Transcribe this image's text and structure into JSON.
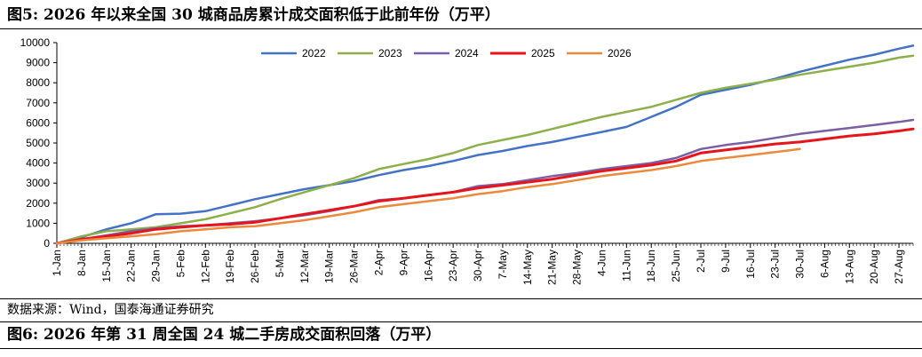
{
  "figure5_title": "图5:  2026 年以来全国 30 城商品房累计成交面积低于此前年份（万平）",
  "source_text": "数据来源：Wind，国泰海通证券研究",
  "figure6_title": "图6:  2026 年第 31 周全国 24 城二手房成交面积回落（万平）",
  "chart_data": {
    "type": "line",
    "title": "",
    "xlabel": "",
    "ylabel": "",
    "ylim": [
      0,
      10000
    ],
    "yticks": [
      0,
      1000,
      2000,
      3000,
      4000,
      5000,
      6000,
      7000,
      8000,
      9000,
      10000
    ],
    "x_range_day": [
      1,
      243
    ],
    "x_ticks": [
      {
        "day": 1,
        "label": "1-Jan"
      },
      {
        "day": 8,
        "label": "8-Jan"
      },
      {
        "day": 15,
        "label": "15-Jan"
      },
      {
        "day": 22,
        "label": "22-Jan"
      },
      {
        "day": 29,
        "label": "29-Jan"
      },
      {
        "day": 36,
        "label": "5-Feb"
      },
      {
        "day": 43,
        "label": "12-Feb"
      },
      {
        "day": 50,
        "label": "19-Feb"
      },
      {
        "day": 57,
        "label": "26-Feb"
      },
      {
        "day": 64,
        "label": "5-Mar"
      },
      {
        "day": 71,
        "label": "12-Mar"
      },
      {
        "day": 78,
        "label": "19-Mar"
      },
      {
        "day": 85,
        "label": "26-Mar"
      },
      {
        "day": 92,
        "label": "2-Apr"
      },
      {
        "day": 99,
        "label": "9-Apr"
      },
      {
        "day": 106,
        "label": "16-Apr"
      },
      {
        "day": 113,
        "label": "23-Apr"
      },
      {
        "day": 120,
        "label": "30-Apr"
      },
      {
        "day": 127,
        "label": "7-May"
      },
      {
        "day": 134,
        "label": "14-May"
      },
      {
        "day": 141,
        "label": "21-May"
      },
      {
        "day": 148,
        "label": "28-May"
      },
      {
        "day": 155,
        "label": "4-Jun"
      },
      {
        "day": 162,
        "label": "11-Jun"
      },
      {
        "day": 169,
        "label": "18-Jun"
      },
      {
        "day": 176,
        "label": "25-Jun"
      },
      {
        "day": 183,
        "label": "2-Jul"
      },
      {
        "day": 190,
        "label": "9-Jul"
      },
      {
        "day": 197,
        "label": "16-Jul"
      },
      {
        "day": 204,
        "label": "23-Jul"
      },
      {
        "day": 211,
        "label": "30-Jul"
      },
      {
        "day": 218,
        "label": "6-Aug"
      },
      {
        "day": 225,
        "label": "13-Aug"
      },
      {
        "day": 232,
        "label": "20-Aug"
      },
      {
        "day": 239,
        "label": "27-Aug"
      }
    ],
    "grid": false,
    "legend": "top-center",
    "series": [
      {
        "name": "2022",
        "color": "#4472C4",
        "points": [
          [
            1,
            0
          ],
          [
            8,
            300
          ],
          [
            15,
            700
          ],
          [
            22,
            1000
          ],
          [
            29,
            1450
          ],
          [
            36,
            1480
          ],
          [
            43,
            1600
          ],
          [
            50,
            1900
          ],
          [
            57,
            2200
          ],
          [
            64,
            2450
          ],
          [
            71,
            2700
          ],
          [
            78,
            2900
          ],
          [
            85,
            3100
          ],
          [
            92,
            3400
          ],
          [
            99,
            3650
          ],
          [
            106,
            3850
          ],
          [
            113,
            4100
          ],
          [
            120,
            4400
          ],
          [
            127,
            4600
          ],
          [
            134,
            4850
          ],
          [
            141,
            5050
          ],
          [
            148,
            5300
          ],
          [
            155,
            5550
          ],
          [
            162,
            5800
          ],
          [
            169,
            6300
          ],
          [
            176,
            6800
          ],
          [
            183,
            7400
          ],
          [
            190,
            7650
          ],
          [
            197,
            7900
          ],
          [
            204,
            8200
          ],
          [
            211,
            8550
          ],
          [
            218,
            8850
          ],
          [
            225,
            9150
          ],
          [
            232,
            9400
          ],
          [
            239,
            9700
          ],
          [
            243,
            9850
          ]
        ]
      },
      {
        "name": "2023",
        "color": "#8DB04B",
        "points": [
          [
            1,
            0
          ],
          [
            8,
            350
          ],
          [
            15,
            600
          ],
          [
            22,
            700
          ],
          [
            29,
            800
          ],
          [
            36,
            1000
          ],
          [
            43,
            1200
          ],
          [
            50,
            1500
          ],
          [
            57,
            1800
          ],
          [
            64,
            2200
          ],
          [
            71,
            2550
          ],
          [
            78,
            2900
          ],
          [
            85,
            3250
          ],
          [
            92,
            3700
          ],
          [
            99,
            3950
          ],
          [
            106,
            4200
          ],
          [
            113,
            4500
          ],
          [
            120,
            4900
          ],
          [
            127,
            5150
          ],
          [
            134,
            5400
          ],
          [
            141,
            5700
          ],
          [
            148,
            6000
          ],
          [
            155,
            6300
          ],
          [
            162,
            6550
          ],
          [
            169,
            6800
          ],
          [
            176,
            7150
          ],
          [
            183,
            7500
          ],
          [
            190,
            7750
          ],
          [
            197,
            7950
          ],
          [
            204,
            8150
          ],
          [
            211,
            8400
          ],
          [
            218,
            8600
          ],
          [
            225,
            8800
          ],
          [
            232,
            9000
          ],
          [
            239,
            9250
          ],
          [
            243,
            9350
          ]
        ]
      },
      {
        "name": "2024",
        "color": "#7B5FA5",
        "points": [
          [
            1,
            0
          ],
          [
            8,
            200
          ],
          [
            15,
            400
          ],
          [
            22,
            600
          ],
          [
            29,
            750
          ],
          [
            36,
            850
          ],
          [
            43,
            900
          ],
          [
            50,
            1000
          ],
          [
            57,
            1100
          ],
          [
            64,
            1250
          ],
          [
            71,
            1400
          ],
          [
            78,
            1600
          ],
          [
            85,
            1850
          ],
          [
            92,
            2150
          ],
          [
            99,
            2250
          ],
          [
            106,
            2400
          ],
          [
            113,
            2550
          ],
          [
            120,
            2850
          ],
          [
            127,
            2950
          ],
          [
            134,
            3150
          ],
          [
            141,
            3350
          ],
          [
            148,
            3500
          ],
          [
            155,
            3700
          ],
          [
            162,
            3850
          ],
          [
            169,
            4000
          ],
          [
            176,
            4250
          ],
          [
            183,
            4700
          ],
          [
            190,
            4900
          ],
          [
            197,
            5050
          ],
          [
            204,
            5250
          ],
          [
            211,
            5450
          ],
          [
            218,
            5600
          ],
          [
            225,
            5750
          ],
          [
            232,
            5900
          ],
          [
            239,
            6050
          ],
          [
            243,
            6150
          ]
        ]
      },
      {
        "name": "2025",
        "color": "#E8141B",
        "points": [
          [
            1,
            0
          ],
          [
            8,
            200
          ],
          [
            15,
            350
          ],
          [
            22,
            500
          ],
          [
            29,
            700
          ],
          [
            36,
            800
          ],
          [
            43,
            900
          ],
          [
            50,
            950
          ],
          [
            57,
            1050
          ],
          [
            64,
            1250
          ],
          [
            71,
            1450
          ],
          [
            78,
            1650
          ],
          [
            85,
            1850
          ],
          [
            92,
            2100
          ],
          [
            99,
            2250
          ],
          [
            106,
            2400
          ],
          [
            113,
            2550
          ],
          [
            120,
            2750
          ],
          [
            127,
            2900
          ],
          [
            134,
            3050
          ],
          [
            141,
            3200
          ],
          [
            148,
            3400
          ],
          [
            155,
            3600
          ],
          [
            162,
            3750
          ],
          [
            169,
            3900
          ],
          [
            176,
            4100
          ],
          [
            183,
            4500
          ],
          [
            190,
            4650
          ],
          [
            197,
            4800
          ],
          [
            204,
            4950
          ],
          [
            211,
            5050
          ],
          [
            218,
            5200
          ],
          [
            225,
            5350
          ],
          [
            232,
            5450
          ],
          [
            239,
            5600
          ],
          [
            243,
            5700
          ]
        ]
      },
      {
        "name": "2026",
        "color": "#EB8A3C",
        "points": [
          [
            1,
            0
          ],
          [
            8,
            150
          ],
          [
            15,
            250
          ],
          [
            22,
            350
          ],
          [
            29,
            450
          ],
          [
            36,
            600
          ],
          [
            43,
            700
          ],
          [
            50,
            800
          ],
          [
            57,
            850
          ],
          [
            64,
            1000
          ],
          [
            71,
            1150
          ],
          [
            78,
            1350
          ],
          [
            85,
            1550
          ],
          [
            92,
            1800
          ],
          [
            99,
            1950
          ],
          [
            106,
            2100
          ],
          [
            113,
            2250
          ],
          [
            120,
            2450
          ],
          [
            127,
            2600
          ],
          [
            134,
            2800
          ],
          [
            141,
            2950
          ],
          [
            148,
            3150
          ],
          [
            155,
            3350
          ],
          [
            162,
            3500
          ],
          [
            169,
            3650
          ],
          [
            176,
            3850
          ],
          [
            183,
            4100
          ],
          [
            190,
            4250
          ],
          [
            197,
            4400
          ],
          [
            204,
            4550
          ],
          [
            211,
            4700
          ]
        ]
      }
    ]
  }
}
